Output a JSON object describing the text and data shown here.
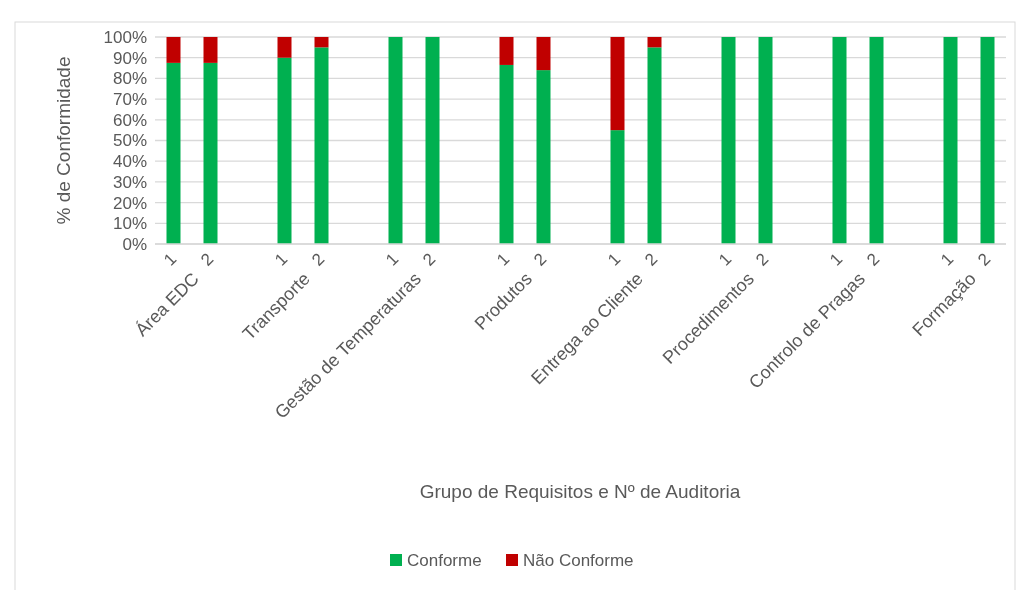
{
  "chart_data": {
    "type": "bar",
    "stacked": true,
    "ylabel": "% de Conformidade",
    "categories": [
      "1",
      "2",
      "1",
      "2",
      "1",
      "2",
      "1",
      "2",
      "1",
      "2",
      "1",
      "2",
      "1",
      "2",
      "1",
      "2"
    ],
    "annotations": [
      "Área EDC",
      "Transporte",
      "Gestão de Temperaturas",
      "Produtos",
      "Entrega ao Cliente",
      "Procedimentos",
      "Controlo de Pragas",
      "Formação",
      "Grupo de Requisitos e Nº de Auditoria"
    ],
    "series": [
      {
        "name": "Conforme",
        "color": "#00b050",
        "values": [
          87.5,
          87.5,
          90,
          95,
          100,
          100,
          86.5,
          84,
          55,
          95,
          100,
          100,
          100,
          100,
          100,
          100
        ]
      },
      {
        "name": "Não Conforme",
        "color": "#c00000",
        "values": [
          12.5,
          12.5,
          10,
          5,
          0,
          0,
          13.5,
          16,
          45,
          5,
          0,
          0,
          0,
          0,
          0,
          0
        ]
      }
    ],
    "ylim": [
      0,
      100
    ],
    "yticks": [
      {
        "value": 0,
        "label": "0%"
      },
      {
        "value": 10,
        "label": "10%"
      },
      {
        "value": 20,
        "label": "20%"
      },
      {
        "value": 30,
        "label": "30%"
      },
      {
        "value": 40,
        "label": "40%"
      },
      {
        "value": 50,
        "label": "50%"
      },
      {
        "value": 60,
        "label": "60%"
      },
      {
        "value": 70,
        "label": "70%"
      },
      {
        "value": 80,
        "label": "80%"
      },
      {
        "value": 90,
        "label": "90%"
      },
      {
        "value": 100,
        "label": "100%"
      }
    ],
    "grid": "y",
    "legend": "bottom"
  }
}
